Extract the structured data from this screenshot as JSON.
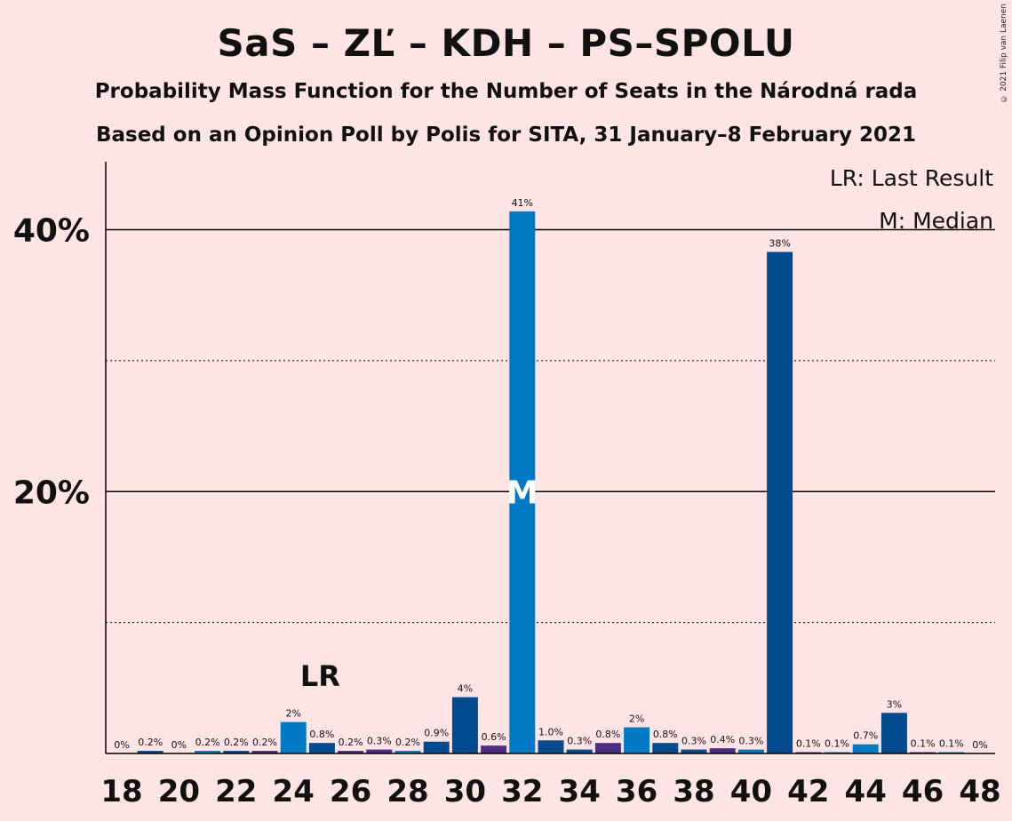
{
  "title": "SaS – ZĽ – KDH – PS–SPOLU",
  "subtitle": "Probability Mass Function for the Number of Seats in the Národná rada",
  "subtitle2": "Based on an Opinion Poll by Polis for SITA, 31 January–8 February 2021",
  "copyright": "© 2021 Filip van Laenen",
  "legend": {
    "lr": "LR: Last Result",
    "m": "M: Median"
  },
  "colors": {
    "background": "#ffe4e6",
    "bright_blue": "#0079c4",
    "dark_blue": "#004b8d",
    "purple": "#4b2e83"
  },
  "chart_data": {
    "type": "bar",
    "x": [
      18,
      19,
      20,
      21,
      22,
      23,
      24,
      25,
      26,
      27,
      28,
      29,
      30,
      31,
      32,
      33,
      34,
      35,
      36,
      37,
      38,
      39,
      40,
      41,
      42,
      43,
      44,
      45,
      46,
      47,
      48
    ],
    "values": [
      0,
      0.2,
      0,
      0.2,
      0.2,
      0.2,
      2.4,
      0.8,
      0.2,
      0.3,
      0.2,
      0.9,
      4.3,
      0.6,
      41.4,
      1.0,
      0.3,
      0.8,
      2.0,
      0.8,
      0.3,
      0.4,
      0.3,
      38.3,
      0.1,
      0.1,
      0.7,
      3.1,
      0.1,
      0.1,
      0
    ],
    "labels": [
      "0%",
      "0.2%",
      "0%",
      "0.2%",
      "0.2%",
      "0.2%",
      "2%",
      "0.8%",
      "0.2%",
      "0.3%",
      "0.2%",
      "0.9%",
      "4%",
      "0.6%",
      "41%",
      "1.0%",
      "0.3%",
      "0.8%",
      "2%",
      "0.8%",
      "0.3%",
      "0.4%",
      "0.3%",
      "38%",
      "0.1%",
      "0.1%",
      "0.7%",
      "3%",
      "0.1%",
      "0.1%",
      "0%"
    ],
    "bar_colors": [
      "bright_blue",
      "dark_blue",
      "purple",
      "bright_blue",
      "dark_blue",
      "purple",
      "bright_blue",
      "dark_blue",
      "purple",
      "purple",
      "bright_blue",
      "dark_blue",
      "dark_blue",
      "purple",
      "bright_blue",
      "dark_blue",
      "dark_blue",
      "purple",
      "bright_blue",
      "dark_blue",
      "dark_blue",
      "purple",
      "bright_blue",
      "dark_blue",
      "purple",
      "bright_blue",
      "bright_blue",
      "dark_blue",
      "purple",
      "bright_blue",
      "dark_blue"
    ],
    "x_tick_labels": [
      "18",
      "20",
      "22",
      "24",
      "26",
      "28",
      "30",
      "32",
      "34",
      "36",
      "38",
      "40",
      "42",
      "44",
      "46",
      "48"
    ],
    "y_tick_labels": [
      "20%",
      "40%"
    ],
    "ylim": [
      0,
      45
    ],
    "last_result_seat": 25,
    "last_result_marker": "LR",
    "median_seat": 32,
    "median_marker": "M"
  }
}
